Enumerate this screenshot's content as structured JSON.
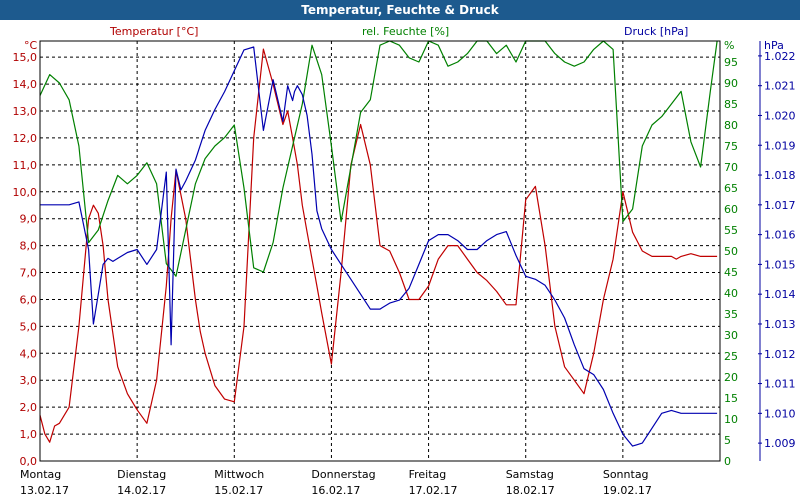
{
  "chart_data": {
    "type": "line",
    "title": "Temperatur, Feuchte & Druck",
    "x_labels": [
      {
        "day": "Montag",
        "date": "13.02.17"
      },
      {
        "day": "Dienstag",
        "date": "14.02.17"
      },
      {
        "day": "Mittwoch",
        "date": "15.02.17"
      },
      {
        "day": "Donnerstag",
        "date": "16.02.17"
      },
      {
        "day": "Freitag",
        "date": "17.02.17"
      },
      {
        "day": "Samstag",
        "date": "18.02.17"
      },
      {
        "day": "Sonntag",
        "date": "19.02.17"
      }
    ],
    "axes": {
      "temperature": {
        "label": "Temperatur [°C]",
        "unit": "°C",
        "range": [
          0,
          15.6
        ],
        "ticks": [
          "0,0",
          "1,0",
          "2,0",
          "3,0",
          "4,0",
          "5,0",
          "6,0",
          "7,0",
          "8,0",
          "9,0",
          "10,0",
          "11,0",
          "12,0",
          "13,0",
          "14,0",
          "15,0"
        ]
      },
      "humidity": {
        "label": "rel. Feuchte [%]",
        "unit": "%",
        "range": [
          0,
          100
        ],
        "ticks": [
          "0",
          "5",
          "10",
          "15",
          "20",
          "25",
          "30",
          "35",
          "40",
          "45",
          "50",
          "55",
          "60",
          "65",
          "70",
          "75",
          "80",
          "85",
          "90",
          "95"
        ]
      },
      "pressure": {
        "label": "Druck [hPa]",
        "unit": "hPa",
        "range": [
          1008.4,
          1022.5
        ],
        "ticks": [
          "1.009",
          "1.010",
          "1.011",
          "1.012",
          "1.013",
          "1.014",
          "1.015",
          "1.016",
          "1.017",
          "1.018",
          "1.019",
          "1.020",
          "1.021",
          "1.022"
        ]
      }
    },
    "grid": true,
    "series": [
      {
        "name": "Temperatur [°C]",
        "color": "#c00000",
        "axis": "temperature",
        "x": [
          0,
          0.05,
          0.1,
          0.15,
          0.2,
          0.3,
          0.4,
          0.5,
          0.55,
          0.6,
          0.65,
          0.7,
          0.8,
          0.9,
          1.0,
          1.1,
          1.2,
          1.3,
          1.35,
          1.4,
          1.5,
          1.6,
          1.62,
          1.65,
          1.7,
          1.8,
          1.9,
          2.0,
          2.1,
          2.2,
          2.3,
          2.4,
          2.5,
          2.55,
          2.6,
          2.65,
          2.7,
          2.75,
          2.8,
          2.85,
          2.9,
          3.0,
          3.1,
          3.15,
          3.2,
          3.3,
          3.4,
          3.5,
          3.6,
          3.7,
          3.8,
          3.9,
          4.0,
          4.1,
          4.2,
          4.3,
          4.4,
          4.5,
          4.6,
          4.7,
          4.8,
          4.9,
          5.0,
          5.1,
          5.2,
          5.3,
          5.4,
          5.5,
          5.6,
          5.7,
          5.8,
          5.9,
          6.0,
          6.1,
          6.2,
          6.3,
          6.4,
          6.5,
          6.55,
          6.6,
          6.7,
          6.8,
          6.9,
          6.97
        ],
        "values": [
          1.7,
          1.0,
          0.7,
          1.3,
          1.4,
          2.0,
          5.0,
          9.0,
          9.5,
          9.2,
          8.0,
          6.0,
          3.5,
          2.5,
          1.9,
          1.4,
          3.0,
          6.5,
          9.0,
          10.8,
          9.0,
          6.0,
          5.5,
          4.8,
          4.0,
          2.8,
          2.3,
          2.2,
          5.0,
          12.0,
          15.3,
          14.0,
          12.5,
          13.0,
          12.0,
          11.0,
          9.5,
          8.5,
          7.5,
          6.5,
          5.5,
          3.6,
          7.0,
          9.0,
          11.0,
          12.5,
          11.0,
          8.0,
          7.8,
          7.0,
          6.0,
          6.0,
          6.5,
          7.5,
          8.0,
          8.0,
          7.5,
          7.0,
          6.7,
          6.3,
          5.8,
          5.8,
          9.7,
          10.2,
          8.0,
          5.0,
          3.5,
          3.0,
          2.5,
          4.0,
          6.0,
          7.5,
          10.0,
          8.5,
          7.8,
          7.6,
          7.6,
          7.6,
          7.5,
          7.6,
          7.7,
          7.6,
          7.6,
          7.6
        ]
      },
      {
        "name": "rel. Feuchte [%]",
        "color": "#008000",
        "axis": "humidity",
        "x": [
          0,
          0.1,
          0.2,
          0.3,
          0.4,
          0.5,
          0.6,
          0.7,
          0.8,
          0.9,
          1.0,
          1.1,
          1.2,
          1.3,
          1.4,
          1.5,
          1.6,
          1.7,
          1.8,
          1.9,
          2.0,
          2.1,
          2.2,
          2.3,
          2.4,
          2.5,
          2.6,
          2.7,
          2.8,
          2.9,
          3.0,
          3.1,
          3.2,
          3.3,
          3.4,
          3.5,
          3.6,
          3.7,
          3.8,
          3.9,
          4.0,
          4.1,
          4.2,
          4.3,
          4.4,
          4.5,
          4.6,
          4.7,
          4.8,
          4.9,
          5.0,
          5.1,
          5.2,
          5.3,
          5.4,
          5.5,
          5.6,
          5.7,
          5.8,
          5.9,
          6.0,
          6.1,
          6.2,
          6.3,
          6.4,
          6.5,
          6.6,
          6.7,
          6.8,
          6.9,
          6.97
        ],
        "values": [
          87,
          92,
          90,
          86,
          75,
          52,
          55,
          62,
          68,
          66,
          68,
          71,
          66,
          47,
          44,
          55,
          66,
          72,
          75,
          77,
          80,
          65,
          46,
          45,
          52,
          65,
          75,
          85,
          99,
          92,
          75,
          57,
          70,
          83,
          86,
          99,
          100,
          99,
          96,
          95,
          100,
          99,
          94,
          95,
          97,
          100,
          100,
          97,
          99,
          95,
          100,
          100,
          100,
          97,
          95,
          94,
          95,
          98,
          100,
          98,
          57,
          60,
          75,
          80,
          82,
          85,
          88,
          76,
          70,
          88,
          100
        ]
      },
      {
        "name": "Druck [hPa]",
        "color": "#0000b0",
        "axis": "pressure",
        "x": [
          0,
          0.1,
          0.2,
          0.3,
          0.4,
          0.5,
          0.55,
          0.6,
          0.65,
          0.7,
          0.75,
          0.8,
          0.9,
          1.0,
          1.1,
          1.2,
          1.3,
          1.35,
          1.4,
          1.45,
          1.5,
          1.6,
          1.7,
          1.8,
          1.9,
          2.0,
          2.1,
          2.2,
          2.3,
          2.4,
          2.5,
          2.55,
          2.6,
          2.62,
          2.65,
          2.7,
          2.75,
          2.8,
          2.85,
          2.9,
          3.0,
          3.1,
          3.2,
          3.3,
          3.4,
          3.5,
          3.6,
          3.7,
          3.8,
          3.9,
          4.0,
          4.1,
          4.2,
          4.3,
          4.4,
          4.5,
          4.6,
          4.7,
          4.8,
          4.9,
          5.0,
          5.1,
          5.2,
          5.3,
          5.4,
          5.5,
          5.6,
          5.7,
          5.8,
          5.9,
          6.0,
          6.1,
          6.2,
          6.3,
          6.4,
          6.5,
          6.6,
          6.7,
          6.8,
          6.9,
          6.97
        ],
        "values": [
          1017,
          1017,
          1017,
          1017,
          1017.1,
          1015.5,
          1013.0,
          1014,
          1015,
          1015.2,
          1015.1,
          1015.2,
          1015.4,
          1015.5,
          1015,
          1015.5,
          1018.1,
          1012.3,
          1018.2,
          1017.5,
          1017.8,
          1018.5,
          1019.5,
          1020.2,
          1020.8,
          1021.5,
          1022.2,
          1022.3,
          1019.5,
          1021.2,
          1019.8,
          1021.0,
          1020.5,
          1020.8,
          1021.0,
          1020.7,
          1020.0,
          1018.7,
          1016.8,
          1016.2,
          1015.5,
          1015,
          1014.5,
          1014.0,
          1013.5,
          1013.5,
          1013.7,
          1013.8,
          1014.2,
          1015.0,
          1015.8,
          1016.0,
          1016.0,
          1015.8,
          1015.5,
          1015.5,
          1015.8,
          1016.0,
          1016.1,
          1015.3,
          1014.6,
          1014.5,
          1014.3,
          1013.8,
          1013.2,
          1012.3,
          1011.5,
          1011.3,
          1010.8,
          1010.0,
          1009.3,
          1008.9,
          1009.0,
          1009.5,
          1010.0,
          1010.1,
          1010.0,
          1010.0,
          1010.0,
          1010.0,
          1010.0
        ]
      }
    ]
  }
}
